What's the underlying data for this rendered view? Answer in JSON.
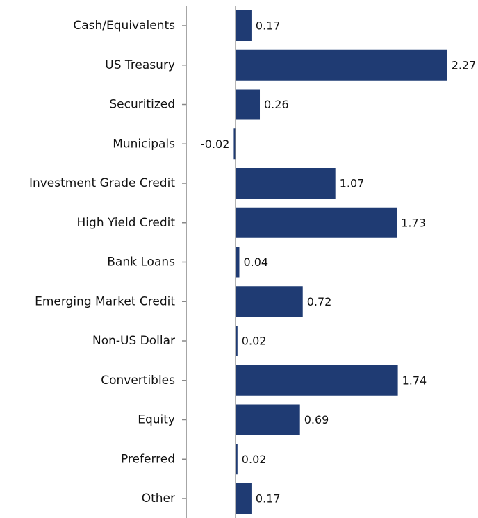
{
  "chart_data": {
    "type": "bar",
    "orientation": "horizontal",
    "categories": [
      "Cash/Equivalents",
      "US Treasury",
      "Securitized",
      "Municipals",
      "Investment Grade Credit",
      "High Yield Credit",
      "Bank Loans",
      "Emerging Market Credit",
      "Non-US Dollar",
      "Convertibles",
      "Equity",
      "Preferred",
      "Other"
    ],
    "values": [
      0.17,
      2.27,
      0.26,
      -0.02,
      1.07,
      1.73,
      0.04,
      0.72,
      0.02,
      1.74,
      0.69,
      0.02,
      0.17
    ],
    "color": "#1f3b73",
    "xlim": [
      -0.53,
      2.6
    ]
  }
}
